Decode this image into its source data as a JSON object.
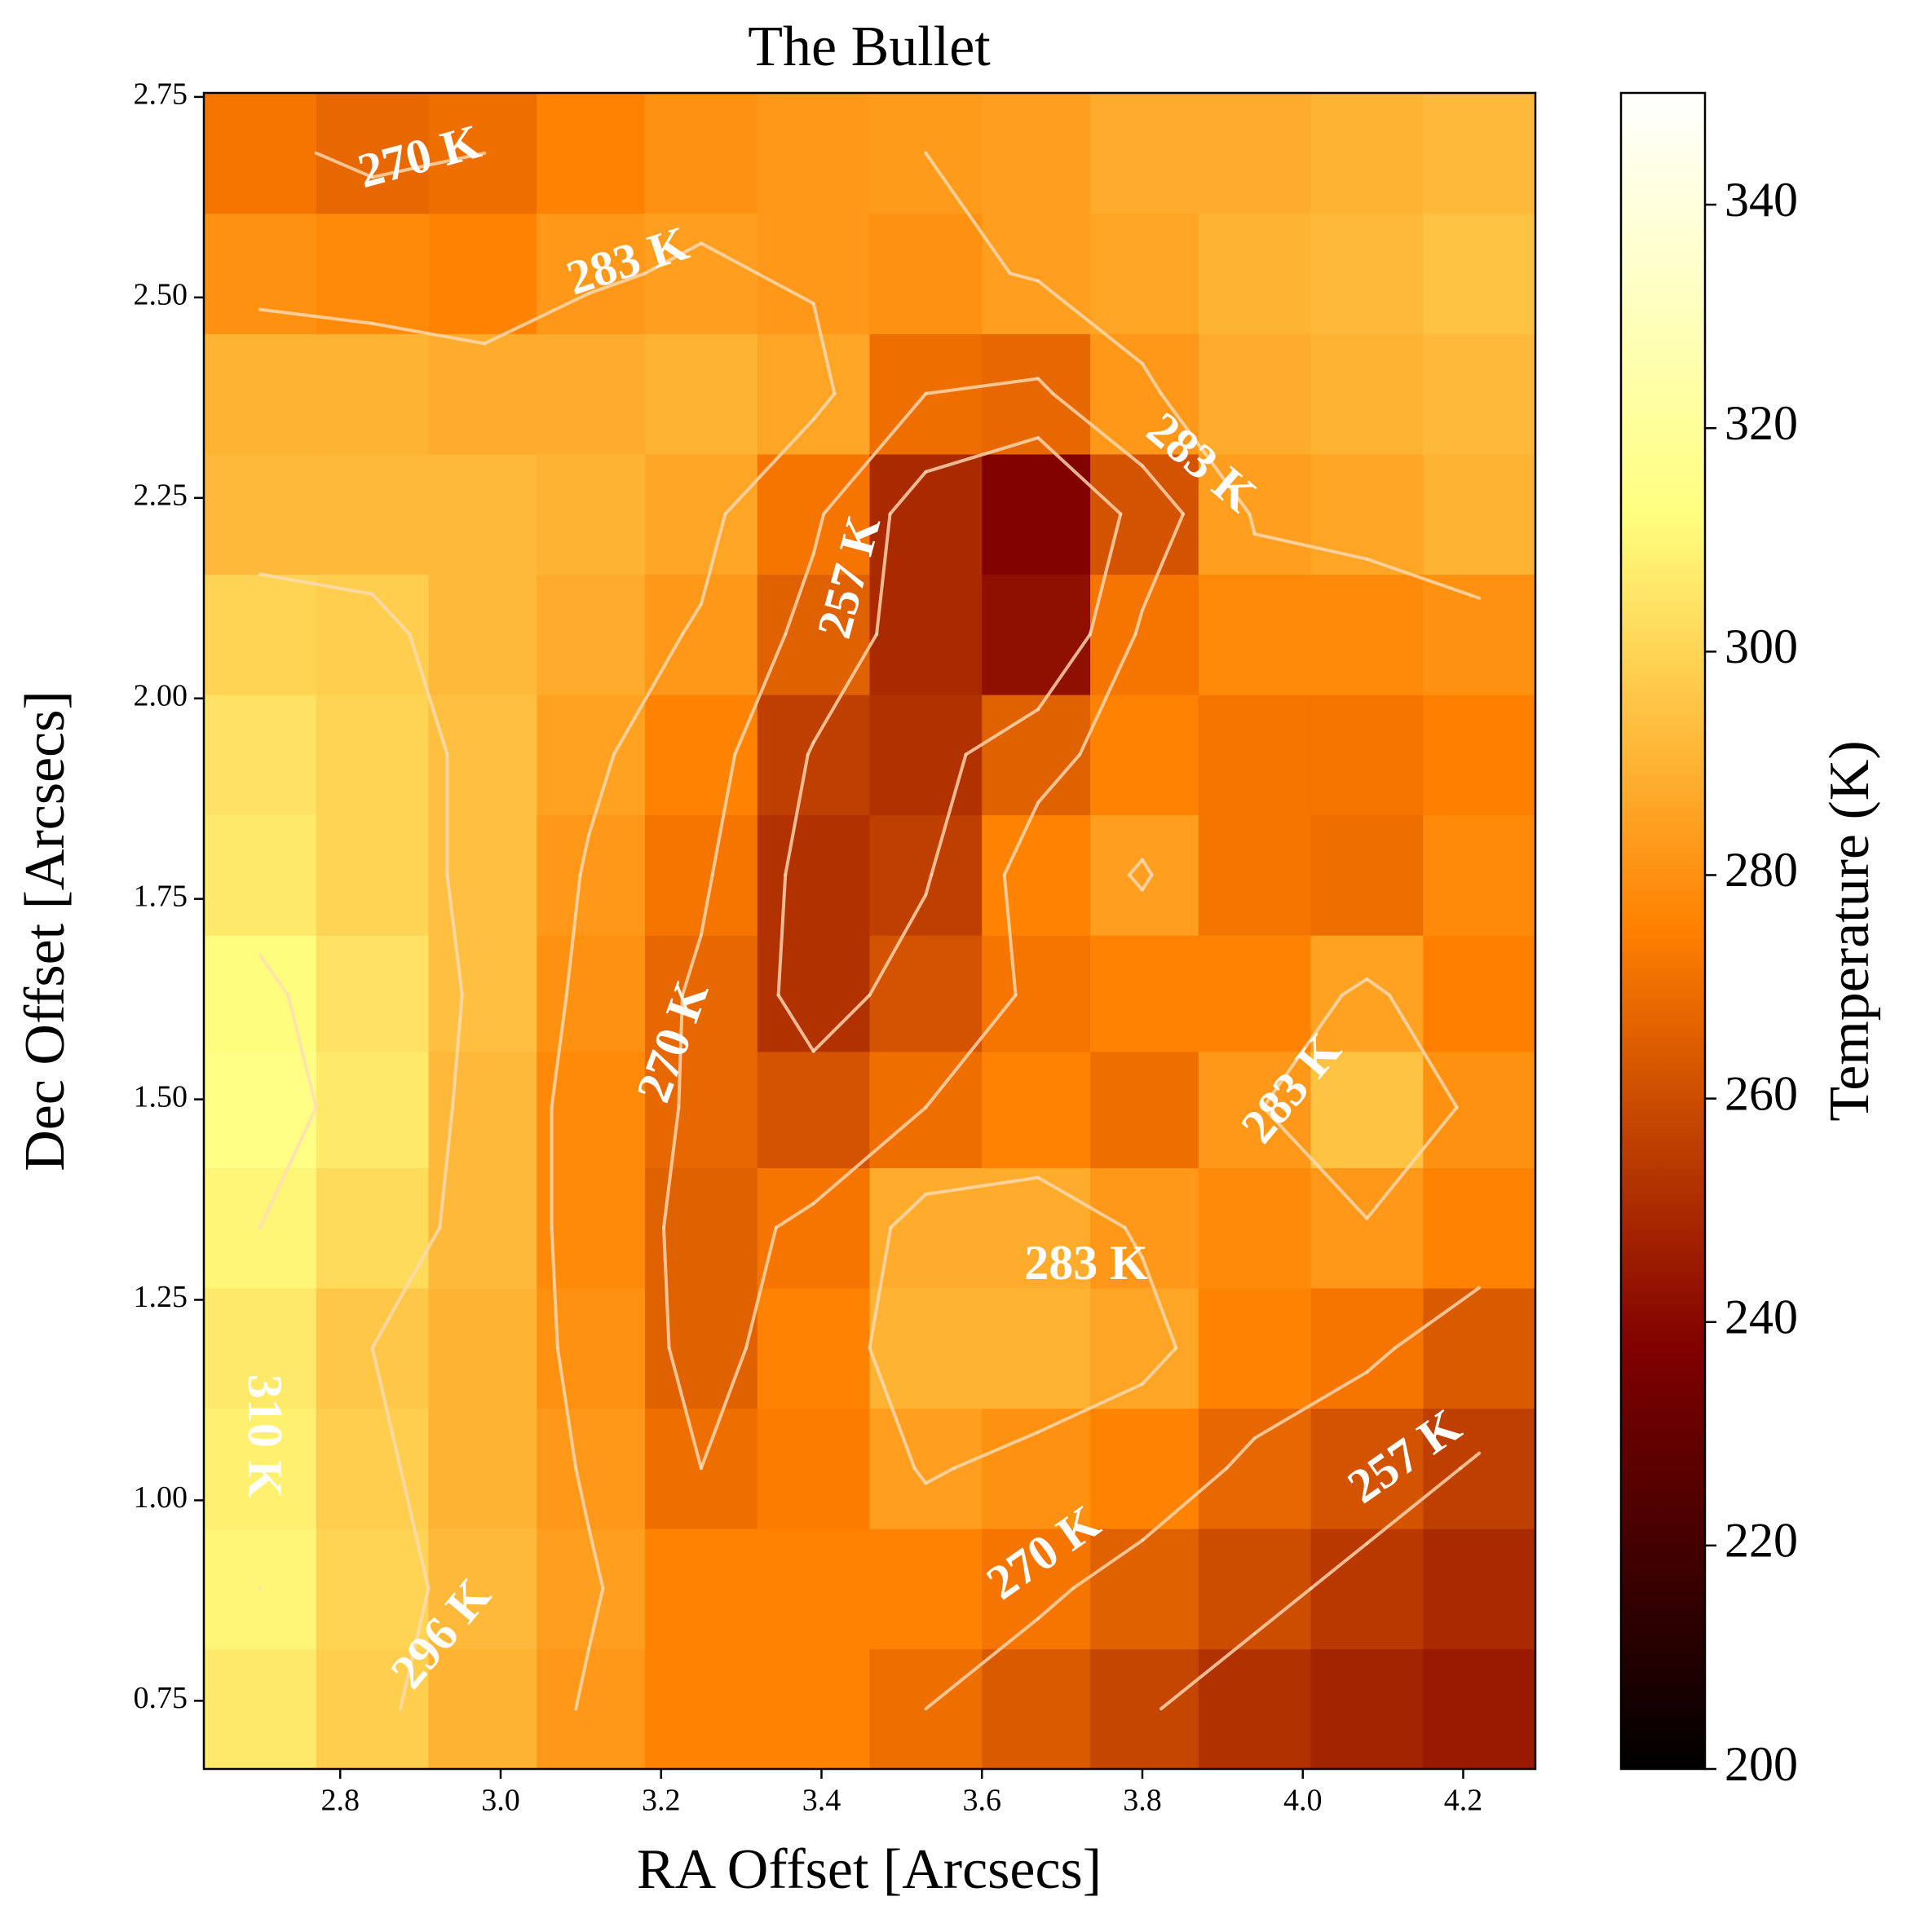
{
  "chart_data": {
    "type": "heatmap",
    "title": "The Bullet",
    "x_label": "RA Offset [Arcsecs]",
    "y_label": "Dec Offset [Arcsecs]",
    "colorbar_label": "Temperature (K)",
    "colormap": "afmhot",
    "x": [
      2.7,
      2.84,
      2.98,
      3.11,
      3.25,
      3.39,
      3.53,
      3.67,
      3.8,
      3.94,
      4.08,
      4.22
    ],
    "y": [
      0.74,
      0.89,
      1.04,
      1.19,
      1.34,
      1.49,
      1.63,
      1.78,
      1.93,
      2.08,
      2.23,
      2.38,
      2.53,
      2.68
    ],
    "z": [
      [
        306,
        298,
        290,
        282,
        276,
        276,
        270,
        264,
        258,
        252,
        248,
        245
      ],
      [
        310,
        300,
        292,
        284,
        276,
        276,
        276,
        272,
        266,
        260,
        254,
        250
      ],
      [
        308,
        298,
        290,
        282,
        270,
        274,
        284,
        280,
        276,
        268,
        262,
        256
      ],
      [
        306,
        296,
        290,
        280,
        266,
        276,
        290,
        290,
        286,
        276,
        272,
        264
      ],
      [
        310,
        302,
        292,
        278,
        266,
        272,
        288,
        288,
        282,
        278,
        282,
        276
      ],
      [
        314,
        306,
        292,
        278,
        268,
        262,
        270,
        276,
        270,
        282,
        295,
        280
      ],
      [
        312,
        304,
        294,
        280,
        268,
        252,
        262,
        272,
        276,
        276,
        285,
        275
      ],
      [
        306,
        300,
        294,
        282,
        272,
        252,
        256,
        276,
        284,
        272,
        270,
        278
      ],
      [
        304,
        300,
        294,
        285,
        276,
        256,
        252,
        266,
        276,
        272,
        272,
        275
      ],
      [
        300,
        298,
        292,
        288,
        282,
        266,
        250,
        242,
        272,
        278,
        278,
        280
      ],
      [
        292,
        292,
        292,
        290,
        286,
        272,
        250,
        238,
        262,
        284,
        286,
        290
      ],
      [
        290,
        290,
        288,
        288,
        290,
        286,
        270,
        268,
        282,
        288,
        290,
        292
      ],
      [
        280,
        278,
        276,
        282,
        284,
        282,
        280,
        284,
        286,
        290,
        292,
        295
      ],
      [
        272,
        268,
        270,
        276,
        280,
        282,
        283,
        284,
        288,
        288,
        290,
        292
      ]
    ],
    "xlim": [
      2.63,
      4.29
    ],
    "ylim": [
      0.665,
      2.755
    ],
    "xticks": [
      2.8,
      {
        "value": 3,
        "label": "3.0"
      },
      3.2,
      3.4,
      3.6,
      3.8,
      {
        "value": 4,
        "label": "4.0"
      },
      4.2
    ],
    "yticks": [
      0.75,
      {
        "value": 1,
        "label": "1.00"
      },
      1.25,
      {
        "value": 1.5,
        "label": "1.50"
      },
      1.75,
      {
        "value": 2,
        "label": "2.00"
      },
      2.25,
      {
        "value": 2.5,
        "label": "2.50"
      },
      2.75
    ],
    "clim": [
      200,
      350
    ],
    "cticks": [
      200,
      220,
      240,
      260,
      280,
      300,
      320,
      340
    ],
    "levels": [
      257,
      270,
      283,
      296,
      310
    ],
    "contour_color": "#ffdcb8",
    "contour_labels": [
      {
        "label": "270 K",
        "x": 2.9,
        "y": 2.67
      },
      {
        "label": "283 K",
        "x": 3.16,
        "y": 2.54
      },
      {
        "label": "283 K",
        "x": 3.87,
        "y": 2.29
      },
      {
        "label": "257 K",
        "x": 3.44,
        "y": 2.15
      },
      {
        "label": "270 K",
        "x": 3.22,
        "y": 1.57
      },
      {
        "label": "283 K",
        "x": 3.99,
        "y": 1.51
      },
      {
        "label": "283 K",
        "x": 3.73,
        "y": 1.29
      },
      {
        "label": "310 K",
        "x": 2.7,
        "y": 1.08
      },
      {
        "label": "296 K",
        "x": 2.93,
        "y": 0.83
      },
      {
        "label": "270 K",
        "x": 3.68,
        "y": 0.93
      },
      {
        "label": "257 K",
        "x": 4.13,
        "y": 1.05
      }
    ]
  }
}
